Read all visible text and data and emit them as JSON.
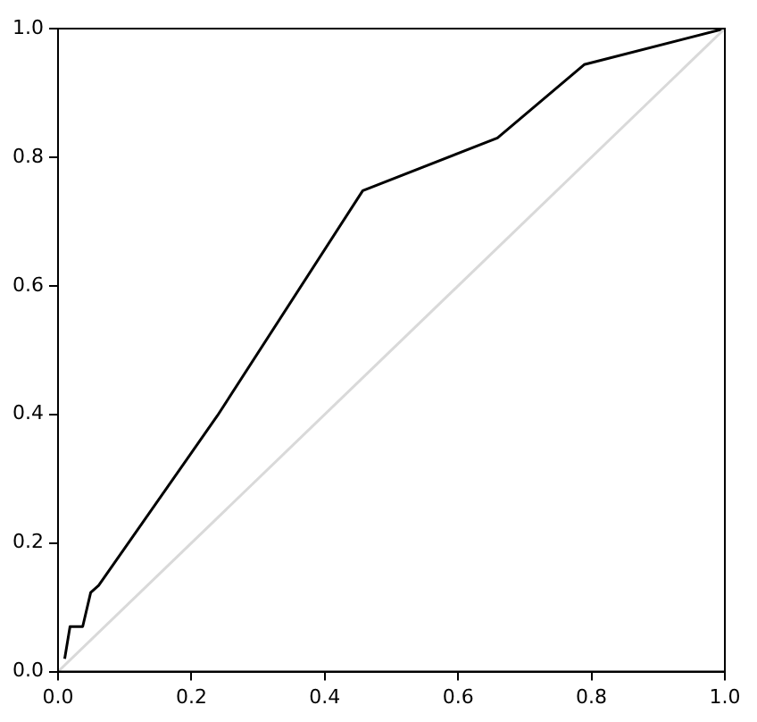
{
  "chart_data": {
    "type": "line",
    "grid": false,
    "legend": false,
    "marker": "none",
    "line_style": "solid",
    "xlim": [
      0,
      1
    ],
    "ylim": [
      0,
      1
    ],
    "xticks": [
      {
        "value": 0,
        "label": "0.0"
      },
      {
        "value": 0.2,
        "label": "0.2"
      },
      {
        "value": 0.4,
        "label": "0.4"
      },
      {
        "value": 0.6,
        "label": "0.6"
      },
      {
        "value": 0.8,
        "label": "0.8"
      },
      {
        "value": 1,
        "label": "1.0"
      }
    ],
    "yticks": [
      {
        "value": 0,
        "label": "0.0"
      },
      {
        "value": 0.2,
        "label": "0.2"
      },
      {
        "value": 0.4,
        "label": "0.4"
      },
      {
        "value": 0.6,
        "label": "0.6"
      },
      {
        "value": 0.8,
        "label": "0.8"
      },
      {
        "value": 1,
        "label": "1.0"
      }
    ],
    "series": [
      {
        "color": "#d9d9d9",
        "x": [
          0,
          1
        ],
        "values": [
          0,
          1
        ]
      },
      {
        "color": "#000000",
        "x": [
          0.01,
          0.018,
          0.037,
          0.049,
          0.061,
          0.239,
          0.457,
          0.659,
          0.789,
          1
        ],
        "values": [
          0.02,
          0.07,
          0.07,
          0.123,
          0.134,
          0.398,
          0.748,
          0.83,
          0.944,
          1
        ]
      }
    ]
  }
}
